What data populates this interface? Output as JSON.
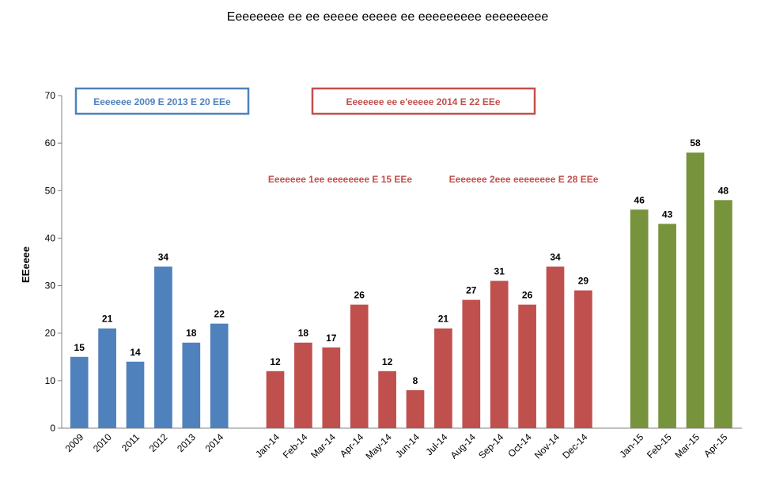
{
  "chart_data": {
    "type": "bar",
    "title": "Eeeeeeee ee ee eeeee eeeee ee eeeeeeeee eeeeeeeee",
    "ylabel": "EEeeee",
    "xlabel": "",
    "ylim": [
      0,
      70
    ],
    "yticks": [
      0,
      10,
      20,
      30,
      40,
      50,
      60,
      70
    ],
    "grid": false,
    "groups": [
      {
        "color": "#4f81bd",
        "categories": [
          "2009",
          "2010",
          "2011",
          "2012",
          "2013",
          "2014"
        ],
        "values": [
          15,
          21,
          14,
          34,
          18,
          22
        ]
      },
      {
        "color": "#c0504d",
        "categories": [
          "Jan-14",
          "Feb-14",
          "Mar-14",
          "Apr-14",
          "May-14",
          "Jun-14",
          "Jul-14",
          "Aug-14",
          "Sep-14",
          "Oct-14",
          "Nov-14",
          "Dec-14"
        ],
        "values": [
          12,
          18,
          17,
          26,
          12,
          8,
          21,
          27,
          31,
          26,
          34,
          29
        ]
      },
      {
        "color": "#77933c",
        "categories": [
          "Jan-15",
          "Feb-15",
          "Mar-15",
          "Apr-15"
        ],
        "values": [
          46,
          43,
          58,
          48
        ]
      }
    ],
    "annotations": [
      {
        "text": "Eeeeeee 2009 E 2013 E  20 EEe",
        "color": "#4f81bd",
        "boxed": true
      },
      {
        "text": "Eeeeeee ee e'eeeee 2014 E 22 EEe",
        "color": "#c0504d",
        "boxed": true
      },
      {
        "text": "Eeeeeee 1ee eeeeeeee E 15 EEe",
        "color": "#c0504d",
        "boxed": false
      },
      {
        "text": "Eeeeeee 2eee eeeeeeee E 28 EEe",
        "color": "#c0504d",
        "boxed": false
      }
    ]
  }
}
